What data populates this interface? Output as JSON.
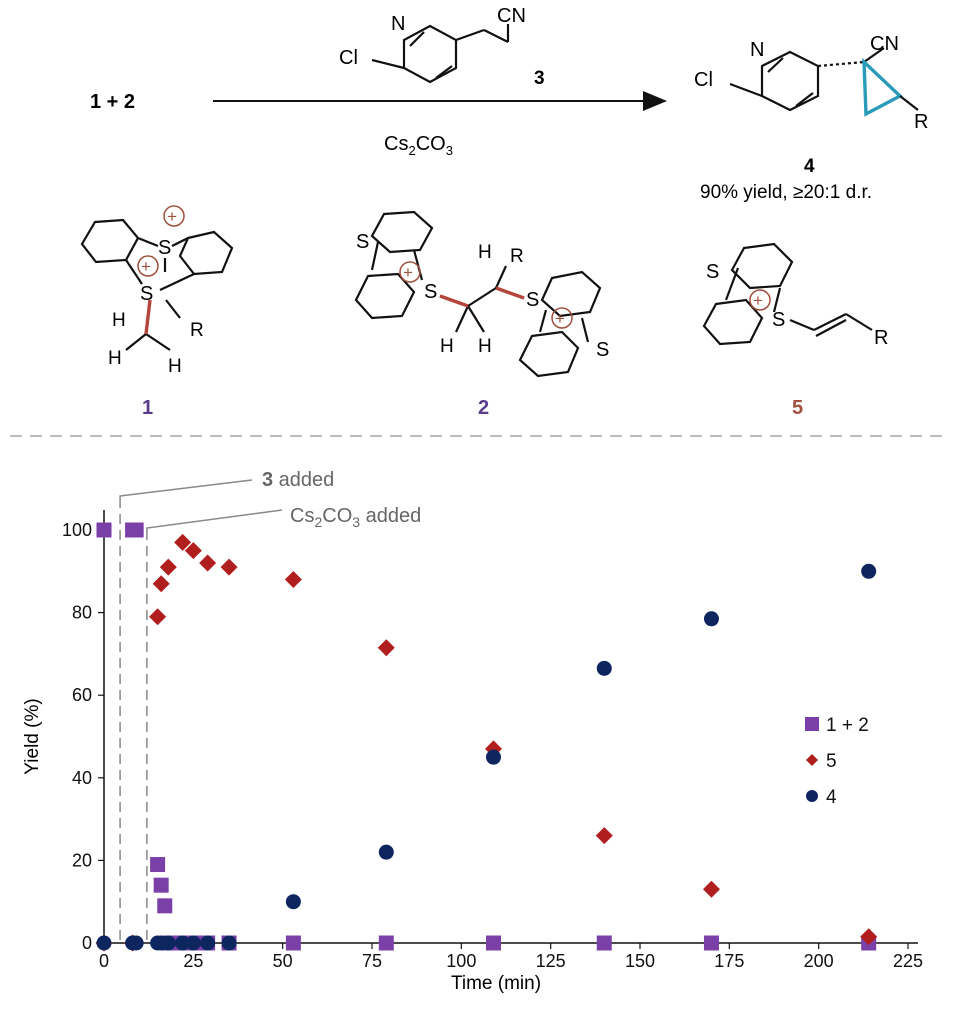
{
  "scheme": {
    "reactants_label": "1 + 2",
    "reagent_label": "3",
    "base_prefix": "Cs",
    "base_sub1": "2",
    "base_mid": "CO",
    "base_sub2": "3",
    "reagent_atoms": {
      "n": "N",
      "cl": "Cl",
      "cn": "CN"
    },
    "product_atoms": {
      "n": "N",
      "cl": "Cl",
      "cn": "CN",
      "r": "R"
    },
    "product_label": "4",
    "product_yield": "90% yield, ≥20:1 d.r.",
    "structures": [
      {
        "label": "1",
        "atoms": [
          "S",
          "S",
          "H",
          "H",
          "H",
          "R"
        ],
        "color": "#5a3a8a"
      },
      {
        "label": "2",
        "atoms": [
          "S",
          "S",
          "S",
          "S",
          "H",
          "R",
          "H",
          "H"
        ],
        "color": "#5a3a8a"
      },
      {
        "label": "5",
        "atoms": [
          "S",
          "S",
          "R"
        ],
        "color": "#a0503c"
      }
    ],
    "plus_symbol": "+",
    "bond_highlight_color": "#b5453a",
    "cyclopropane_color": "#2a9bb8"
  },
  "chart_data": {
    "type": "scatter",
    "xlabel": "Time (min)",
    "ylabel": "Yield (%)",
    "xlim": [
      0,
      225
    ],
    "ylim": [
      0,
      100
    ],
    "xticks": [
      0,
      25,
      50,
      75,
      100,
      125,
      150,
      175,
      200,
      225
    ],
    "yticks": [
      0,
      20,
      40,
      60,
      80,
      100
    ],
    "grid": false,
    "legend_position": "right",
    "annotations": [
      {
        "bold": "3",
        "text": " added",
        "x": 4.5
      },
      {
        "sub_prefix": "Cs",
        "sub1": "2",
        "sub_mid": "CO",
        "sub2": "3",
        "text": " added",
        "x": 12
      }
    ],
    "series": [
      {
        "name": "1 + 2",
        "marker": "square",
        "color": "#7b3fa8",
        "points": [
          [
            0,
            100
          ],
          [
            8,
            100
          ],
          [
            9,
            100
          ],
          [
            15,
            19
          ],
          [
            16,
            14
          ],
          [
            17,
            9
          ],
          [
            18,
            0
          ],
          [
            22,
            0
          ],
          [
            25,
            0
          ],
          [
            29,
            0
          ],
          [
            35,
            0
          ],
          [
            53,
            0
          ],
          [
            79,
            0
          ],
          [
            109,
            0
          ],
          [
            140,
            0
          ],
          [
            170,
            0
          ],
          [
            214,
            0
          ]
        ]
      },
      {
        "name": "5",
        "marker": "diamond",
        "color": "#b01e1e",
        "points": [
          [
            0,
            0
          ],
          [
            8,
            0
          ],
          [
            15,
            79
          ],
          [
            16,
            87
          ],
          [
            18,
            91
          ],
          [
            22,
            97
          ],
          [
            25,
            95
          ],
          [
            29,
            92
          ],
          [
            35,
            91
          ],
          [
            53,
            88
          ],
          [
            79,
            71.5
          ],
          [
            109,
            47
          ],
          [
            140,
            26
          ],
          [
            170,
            13
          ],
          [
            214,
            1.5
          ]
        ]
      },
      {
        "name": "4",
        "marker": "circle",
        "color": "#0d2660",
        "points": [
          [
            0,
            0
          ],
          [
            8,
            0
          ],
          [
            9,
            0
          ],
          [
            15,
            0
          ],
          [
            16,
            0
          ],
          [
            18,
            0
          ],
          [
            22,
            0
          ],
          [
            25,
            0
          ],
          [
            29,
            0
          ],
          [
            35,
            0
          ],
          [
            53,
            10
          ],
          [
            79,
            22
          ],
          [
            109,
            45
          ],
          [
            140,
            66.5
          ],
          [
            170,
            78.5
          ],
          [
            214,
            90
          ]
        ]
      }
    ]
  }
}
